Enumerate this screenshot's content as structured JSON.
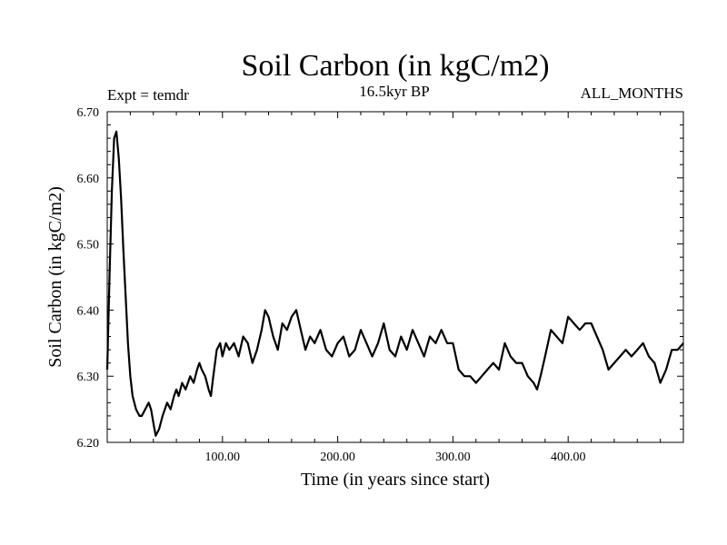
{
  "chart_data": {
    "type": "line",
    "title": "Soil Carbon (in kgC/m2)",
    "subtitle_left": "Expt = temdr",
    "subtitle_center": "16.5kyr BP",
    "subtitle_right": "ALL_MONTHS",
    "xlabel": "Time (in years since start)",
    "ylabel": "Soil Carbon (in kgC/m2)",
    "xlim": [
      0,
      500
    ],
    "ylim": [
      6.2,
      6.7
    ],
    "xticks": [
      100,
      200,
      300,
      400
    ],
    "xtick_labels": [
      "100.00",
      "200.00",
      "300.00",
      "400.00"
    ],
    "yticks": [
      6.2,
      6.3,
      6.4,
      6.5,
      6.6,
      6.7
    ],
    "ytick_labels": [
      "6.20",
      "6.30",
      "6.40",
      "6.50",
      "6.60",
      "6.70"
    ],
    "series": [
      {
        "name": "Soil Carbon",
        "color": "#000000",
        "x": [
          0,
          2,
          4,
          6,
          8,
          10,
          12,
          14,
          16,
          18,
          20,
          22,
          25,
          28,
          30,
          33,
          36,
          38,
          40,
          42,
          45,
          48,
          50,
          52,
          55,
          58,
          60,
          62,
          65,
          68,
          70,
          72,
          75,
          78,
          80,
          82,
          85,
          88,
          90,
          92,
          95,
          98,
          100,
          103,
          106,
          110,
          114,
          118,
          122,
          126,
          130,
          134,
          137,
          140,
          144,
          148,
          152,
          156,
          160,
          164,
          168,
          172,
          176,
          180,
          185,
          190,
          195,
          200,
          205,
          210,
          215,
          220,
          225,
          230,
          235,
          240,
          245,
          250,
          255,
          260,
          265,
          270,
          275,
          280,
          285,
          290,
          295,
          300,
          305,
          310,
          315,
          320,
          325,
          330,
          335,
          340,
          345,
          350,
          355,
          360,
          365,
          370,
          373,
          376,
          380,
          385,
          390,
          395,
          400,
          405,
          410,
          415,
          420,
          425,
          430,
          435,
          440,
          445,
          450,
          455,
          460,
          465,
          470,
          475,
          480,
          485,
          490,
          495,
          500
        ],
        "values": [
          6.31,
          6.45,
          6.58,
          6.66,
          6.67,
          6.63,
          6.57,
          6.49,
          6.42,
          6.35,
          6.3,
          6.27,
          6.25,
          6.24,
          6.24,
          6.25,
          6.26,
          6.25,
          6.23,
          6.21,
          6.22,
          6.24,
          6.25,
          6.26,
          6.25,
          6.27,
          6.28,
          6.27,
          6.29,
          6.28,
          6.29,
          6.3,
          6.29,
          6.31,
          6.32,
          6.31,
          6.3,
          6.28,
          6.27,
          6.3,
          6.34,
          6.35,
          6.33,
          6.35,
          6.34,
          6.35,
          6.33,
          6.36,
          6.35,
          6.32,
          6.34,
          6.37,
          6.4,
          6.39,
          6.36,
          6.34,
          6.38,
          6.37,
          6.39,
          6.4,
          6.37,
          6.34,
          6.36,
          6.35,
          6.37,
          6.34,
          6.33,
          6.35,
          6.36,
          6.33,
          6.34,
          6.37,
          6.35,
          6.33,
          6.35,
          6.38,
          6.34,
          6.33,
          6.36,
          6.34,
          6.37,
          6.35,
          6.33,
          6.36,
          6.35,
          6.37,
          6.35,
          6.35,
          6.31,
          6.3,
          6.3,
          6.29,
          6.3,
          6.31,
          6.32,
          6.31,
          6.35,
          6.33,
          6.32,
          6.32,
          6.3,
          6.29,
          6.28,
          6.3,
          6.33,
          6.37,
          6.36,
          6.35,
          6.39,
          6.38,
          6.37,
          6.38,
          6.38,
          6.36,
          6.34,
          6.31,
          6.32,
          6.33,
          6.34,
          6.33,
          6.34,
          6.35,
          6.33,
          6.32,
          6.29,
          6.31,
          6.34,
          6.34,
          6.35
        ]
      }
    ]
  }
}
